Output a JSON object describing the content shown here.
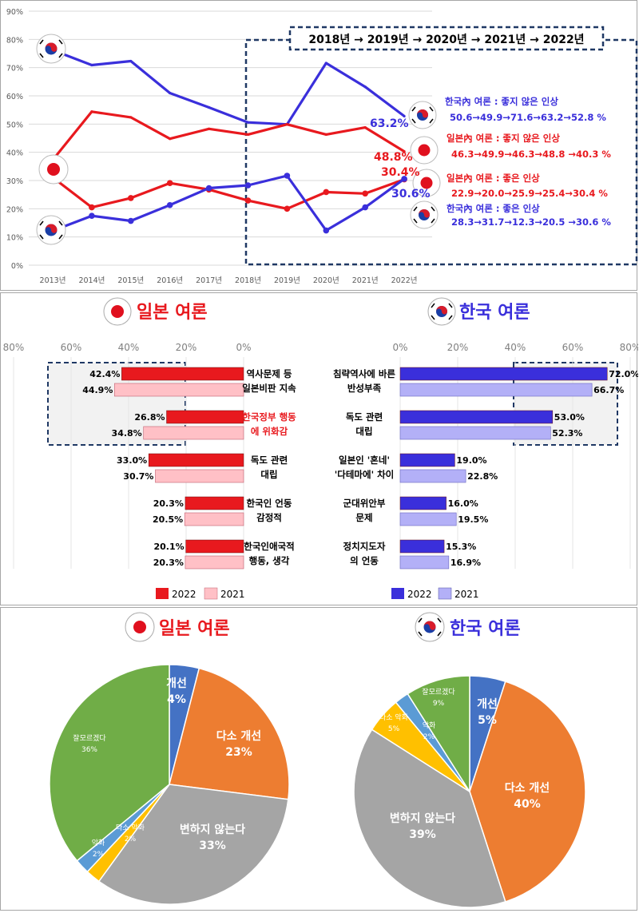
{
  "colors": {
    "red": "#e8191e",
    "blue": "#3a2fdb",
    "pink": "#ffc0c6",
    "lavender": "#b3b0f7",
    "pie_blue": "#4472c4",
    "pie_orange": "#ed7d31",
    "pie_gray": "#a5a5a5",
    "pie_yellow": "#ffc000",
    "pie_lightblue": "#5b9bd5",
    "pie_green": "#70ad47"
  },
  "icons": {
    "japan": "japan-flag-icon",
    "korea": "korea-flag-icon"
  },
  "chart_data": [
    {
      "type": "line",
      "x": [
        "2013년",
        "2014년",
        "2015년",
        "2016년",
        "2017년",
        "2018년",
        "2019년",
        "2020년",
        "2021년",
        "2022년"
      ],
      "ylim": [
        0,
        90
      ],
      "y_ticks": [
        "0%",
        "10%",
        "20%",
        "30%",
        "40%",
        "50%",
        "60%",
        "70%",
        "80%",
        "90%"
      ],
      "grid": true,
      "series": [
        {
          "key": "kr_neg",
          "color": "#3a2fdb",
          "values": [
            76.2,
            70.9,
            72.3,
            61.0,
            55.9,
            50.6,
            49.9,
            71.6,
            63.2,
            52.8
          ]
        },
        {
          "key": "jp_neg",
          "color": "#e8191e",
          "values": [
            37.3,
            54.4,
            52.4,
            44.8,
            48.3,
            46.3,
            49.9,
            46.3,
            48.8,
            40.3
          ]
        },
        {
          "key": "jp_pos",
          "color": "#e8191e",
          "values": [
            31.1,
            20.5,
            23.8,
            29.1,
            26.8,
            22.9,
            20.0,
            25.9,
            25.4,
            30.4
          ]
        },
        {
          "key": "kr_pos",
          "color": "#3a2fdb",
          "values": [
            12.2,
            17.5,
            15.7,
            21.3,
            27.3,
            28.3,
            31.7,
            12.3,
            20.5,
            30.6
          ]
        }
      ],
      "period_box": "2018년 → 2019년 → 2020년 → 2021년 → 2022년",
      "point_labels": {
        "kr_neg_2021": "63.2%",
        "jp_neg_2021": "48.8%",
        "jp_pos_2022": "30.4%",
        "kr_pos_2022": "30.6%"
      },
      "annotations": [
        {
          "title": "한국內 여론 : 좋지 않은 인상",
          "values": "50.6→49.9→71.6→63.2→52.8  %",
          "color": "#3a2fdb"
        },
        {
          "title": "일본內 여론 : 좋지 않은 인상",
          "values": "46.3→49.9→46.3→48.8  →40.3  %",
          "color": "#e8191e"
        },
        {
          "title": "일본內 여론 : 좋은 인상",
          "values": "22.9→20.0→25.9→25.4→30.4  %",
          "color": "#e8191e"
        },
        {
          "title": "한국內 여론 : 좋은 인상",
          "values": "28.3→31.7→12.3→20.5  →30.6  %",
          "color": "#3a2fdb"
        }
      ]
    },
    {
      "type": "bar",
      "title": "일본 여론",
      "axis_ticks": [
        "80%",
        "60%",
        "40%",
        "20%",
        "0%"
      ],
      "xlim": [
        0,
        80
      ],
      "categories": [
        "역사문제 등|일본비판 지속",
        "한국정부 행동|에 위화감",
        "독도 관련|대립",
        "한국인 언동|감정적",
        "한국인애국적|행동, 생각"
      ],
      "category_colors": [
        "#000000",
        "#e8191e",
        "#000000",
        "#000000",
        "#000000"
      ],
      "series": [
        {
          "name": "2022",
          "values": [
            42.4,
            26.8,
            33.0,
            20.3,
            20.1
          ]
        },
        {
          "name": "2021",
          "values": [
            44.9,
            34.8,
            30.7,
            20.5,
            20.3
          ]
        }
      ],
      "value_labels": {
        "2022": [
          "42.4%",
          "26.8%",
          "33.0%",
          "20.3%",
          "20.1%"
        ],
        "2021": [
          "44.9%",
          "34.8%",
          "30.7%",
          "20.5%",
          "20.3%"
        ]
      }
    },
    {
      "type": "bar",
      "title": "한국 여론",
      "axis_ticks": [
        "0%",
        "20%",
        "40%",
        "60%",
        "80%"
      ],
      "xlim": [
        0,
        80
      ],
      "categories": [
        "침략역사에 바른|반성부족",
        "독도 관련|대립",
        "일본인 '혼네'|'다테마에' 차이",
        "군대위안부|문제",
        "정치지도자|의 언동"
      ],
      "series": [
        {
          "name": "2022",
          "values": [
            72.0,
            53.0,
            19.0,
            16.0,
            15.3
          ]
        },
        {
          "name": "2021",
          "values": [
            66.7,
            52.3,
            22.8,
            19.5,
            16.9
          ]
        }
      ],
      "value_labels": {
        "2022": [
          "72.0%",
          "53.0%",
          "19.0%",
          "16.0%",
          "15.3%"
        ],
        "2021": [
          "66.7%",
          "52.3%",
          "22.8%",
          "19.5%",
          "16.9%"
        ]
      }
    },
    {
      "type": "pie",
      "title": "일본 여론",
      "slices": [
        {
          "label": "개선",
          "value": 4,
          "text": "4%",
          "color": "#4472c4"
        },
        {
          "label": "다소 개선",
          "value": 23,
          "text": "23%",
          "color": "#ed7d31"
        },
        {
          "label": "변하지 않는다",
          "value": 33,
          "text": "33%",
          "color": "#a5a5a5"
        },
        {
          "label": "다소 악화",
          "value": 2,
          "text": "2%",
          "color": "#ffc000"
        },
        {
          "label": "악화",
          "value": 2,
          "text": "2%",
          "color": "#5b9bd5"
        },
        {
          "label": "잘모르겠다",
          "value": 36,
          "text": "36%",
          "color": "#70ad47"
        }
      ]
    },
    {
      "type": "pie",
      "title": "한국 여론",
      "slices": [
        {
          "label": "개선",
          "value": 5,
          "text": "5%",
          "color": "#4472c4"
        },
        {
          "label": "다소 개선",
          "value": 40,
          "text": "40%",
          "color": "#ed7d31"
        },
        {
          "label": "변하지 않는다",
          "value": 39,
          "text": "39%",
          "color": "#a5a5a5"
        },
        {
          "label": "다소 악화",
          "value": 5,
          "text": "5%",
          "color": "#ffc000"
        },
        {
          "label": "악화",
          "value": 2,
          "text": "2%",
          "color": "#5b9bd5"
        },
        {
          "label": "잘모르겠다",
          "value": 9,
          "text": "9%",
          "color": "#70ad47"
        }
      ]
    }
  ]
}
